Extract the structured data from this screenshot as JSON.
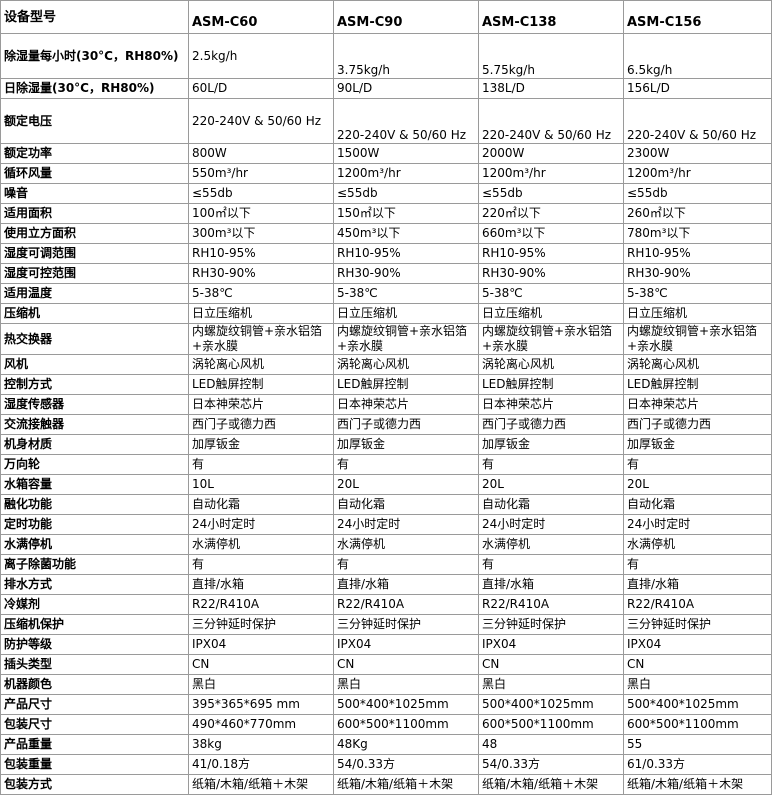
{
  "table": {
    "header": [
      "设备型号",
      "ASM-C60",
      "ASM-C90",
      "ASM-C138",
      "ASM-C156"
    ],
    "rows": [
      [
        "除湿量每小时(30°C，RH80%)",
        "2.5kg/h",
        "3.75kg/h",
        "5.75kg/h",
        "6.5kg/h"
      ],
      [
        "日除湿量(30°C，RH80%)",
        "60L/D",
        "90L/D",
        "138L/D",
        "156L/D"
      ],
      [
        "额定电压",
        "220-240V & 50/60 Hz",
        "220-240V & 50/60 Hz",
        "220-240V & 50/60 Hz",
        "220-240V & 50/60 Hz"
      ],
      [
        "额定功率",
        "800W",
        "1500W",
        "2000W",
        "2300W"
      ],
      [
        "循环风量",
        "550m³/hr",
        "1200m³/hr",
        "1200m³/hr",
        "1200m³/hr"
      ],
      [
        "噪音",
        "≤55db",
        "≤55db",
        "≤55db",
        "≤55db"
      ],
      [
        "适用面积",
        "100㎡以下",
        "150㎡以下",
        "220㎡以下",
        "260㎡以下"
      ],
      [
        "使用立方面积",
        "300m³以下",
        "450m³以下",
        "660m³以下",
        "780m³以下"
      ],
      [
        "湿度可调范围",
        "RH10-95%",
        "RH10-95%",
        "RH10-95%",
        "RH10-95%"
      ],
      [
        "湿度可控范围",
        "RH30-90%",
        "RH30-90%",
        "RH30-90%",
        "RH30-90%"
      ],
      [
        "适用温度",
        "5-38℃",
        "5-38℃",
        "5-38℃",
        "5-38℃"
      ],
      [
        "压缩机",
        "日立压缩机",
        "日立压缩机",
        "日立压缩机",
        "日立压缩机"
      ],
      [
        "热交换器",
        "内螺旋纹铜管+亲水铝箔+亲水膜",
        "内螺旋纹铜管+亲水铝箔+亲水膜",
        "内螺旋纹铜管+亲水铝箔+亲水膜",
        "内螺旋纹铜管+亲水铝箔+亲水膜"
      ],
      [
        "风机",
        "涡轮离心风机",
        "涡轮离心风机",
        "涡轮离心风机",
        "涡轮离心风机"
      ],
      [
        "控制方式",
        "LED触屏控制",
        "LED触屏控制",
        "LED触屏控制",
        "LED触屏控制"
      ],
      [
        "湿度传感器",
        "日本神荣芯片",
        "日本神荣芯片",
        "日本神荣芯片",
        "日本神荣芯片"
      ],
      [
        "交流接触器",
        "西门子或德力西",
        "西门子或德力西",
        "西门子或德力西",
        "西门子或德力西"
      ],
      [
        "机身材质",
        "加厚钣金",
        "加厚钣金",
        "加厚钣金",
        "加厚钣金"
      ],
      [
        "万向轮",
        "有",
        "有",
        "有",
        "有"
      ],
      [
        "水箱容量",
        "10L",
        "20L",
        "20L",
        "20L"
      ],
      [
        "融化功能",
        "自动化霜",
        "自动化霜",
        "自动化霜",
        "自动化霜"
      ],
      [
        "定时功能",
        "24小时定时",
        "24小时定时",
        "24小时定时",
        "24小时定时"
      ],
      [
        "水满停机",
        "水满停机",
        "水满停机",
        "水满停机",
        "水满停机"
      ],
      [
        "离子除菌功能",
        "有",
        "有",
        "有",
        "有"
      ],
      [
        "排水方式",
        "直排/水箱",
        "直排/水箱",
        "直排/水箱",
        "直排/水箱"
      ],
      [
        "冷媒剂",
        "R22/R410A",
        "R22/R410A",
        "R22/R410A",
        "R22/R410A"
      ],
      [
        "压缩机保护",
        "三分钟延时保护",
        "三分钟延时保护",
        "三分钟延时保护",
        "三分钟延时保护"
      ],
      [
        "防护等级",
        "IPX04",
        "IPX04",
        "IPX04",
        "IPX04"
      ],
      [
        "插头类型",
        "CN",
        "CN",
        "CN",
        "CN"
      ],
      [
        "机器颜色",
        "黑白",
        "黑白",
        "黑白",
        "黑白"
      ],
      [
        "产品尺寸",
        "395*365*695 mm",
        "500*400*1025mm",
        "500*400*1025mm",
        "500*400*1025mm"
      ],
      [
        "包装尺寸",
        "490*460*770mm",
        "600*500*1100mm",
        "600*500*1100mm",
        "600*500*1100mm"
      ],
      [
        "产品重量",
        "38kg",
        "48Kg",
        "48",
        "55"
      ],
      [
        "包装重量",
        "41/0.18方",
        "54/0.33方",
        "54/0.33方",
        "61/0.33方"
      ],
      [
        "包装方式",
        "纸箱/木箱/纸箱＋木架",
        "纸箱/木箱/纸箱＋木架",
        "纸箱/木箱/纸箱＋木架",
        "纸箱/木箱/纸箱＋木架"
      ]
    ]
  }
}
